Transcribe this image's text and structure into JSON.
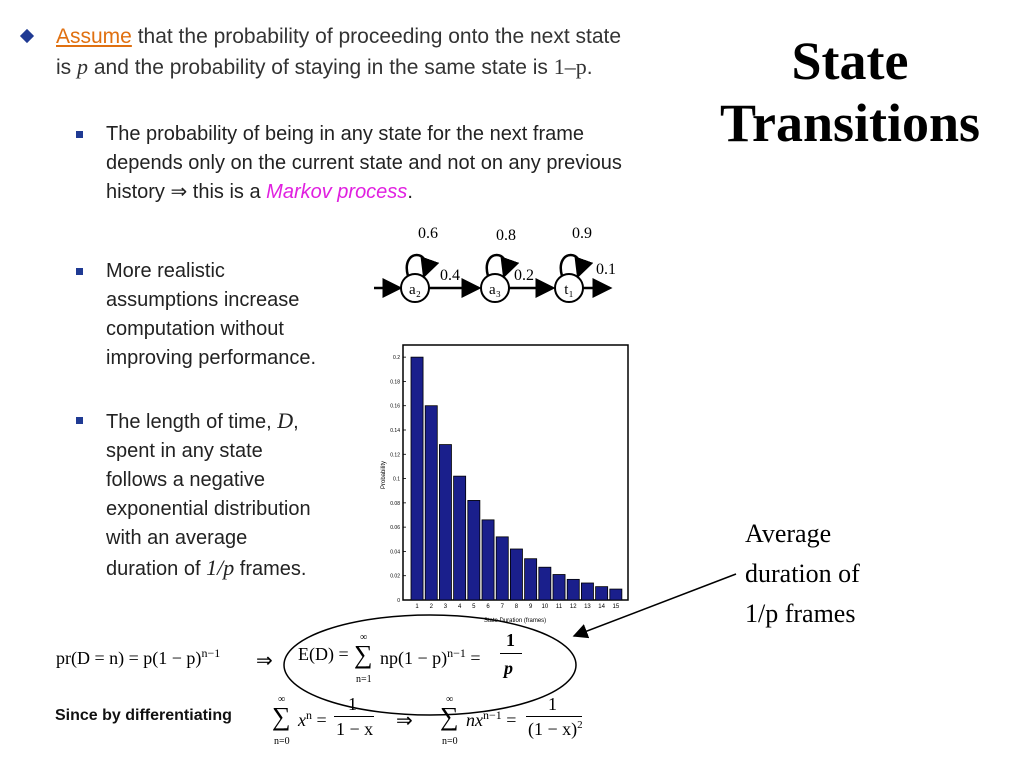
{
  "title": [
    "State",
    "Transitions"
  ],
  "bullet1": {
    "word_assume": "Assume",
    "text_a": " that the probability of proceeding onto the next state is ",
    "var_p": "p",
    "text_b": " and the probability of staying in the same state is ",
    "one_minus_p": "1–p",
    "text_c": "."
  },
  "sub1": {
    "text_a": "The probability of being in any state for the next frame depends only on the current state and not on any previous history ",
    "implies": "⇒",
    "text_b": " this is a ",
    "markov": "Markov process",
    "text_c": "."
  },
  "sub2": {
    "lines": [
      "More realistic",
      "assumptions increase",
      "computation without",
      "improving performance."
    ]
  },
  "sub3": {
    "text_a": "The length of time, ",
    "var_d": "D",
    "text_b": ",",
    "lines": [
      "spent in any state",
      "follows a negative",
      "exponential distribution",
      "with an average"
    ],
    "last_a": "duration of ",
    "last_var": "1/p",
    "last_b": " frames."
  },
  "diagram": {
    "nodes": [
      "a₂",
      "a₃",
      "t₁"
    ],
    "self_loops": [
      "0.6",
      "0.8",
      "0.9"
    ],
    "transitions": [
      "0.4",
      "0.2",
      "0.1"
    ]
  },
  "chart_data": {
    "type": "bar",
    "categories": [
      "1",
      "2",
      "3",
      "4",
      "5",
      "6",
      "7",
      "8",
      "9",
      "10",
      "11",
      "12",
      "13",
      "14",
      "15"
    ],
    "values": [
      0.2,
      0.16,
      0.128,
      0.102,
      0.082,
      0.066,
      0.052,
      0.042,
      0.034,
      0.027,
      0.021,
      0.017,
      0.014,
      0.011,
      0.009
    ],
    "ylim": [
      0,
      0.21
    ],
    "yticks": [
      "0",
      "0.02",
      "0.04",
      "0.06",
      "0.08",
      "0.1",
      "0.12",
      "0.14",
      "0.16",
      "0.18",
      "0.2"
    ],
    "xlabel": "State Duration (frames)",
    "ylabel": "Probability",
    "bar_color": "#1a1f8c"
  },
  "formulas": {
    "pr_left": "pr(D = n) = p(1 − p)",
    "pr_exp": "n−1",
    "implies": "⇒",
    "e_left": "E(D) = ",
    "sum_top": "∞",
    "sum_bottom": "n=1",
    "sum_sign": "∑",
    "e_body": "np(1 − p)",
    "e_exp": "n−1",
    "eq": " = ",
    "frac_num": "1",
    "frac_den": "p"
  },
  "since": {
    "label": "Since by differentiating",
    "s1_top": "∞",
    "s1_bottom": "n=0",
    "sum_sign": "∑",
    "s1_body": "x",
    "s1_exp": "n",
    "eq": " = ",
    "s1_num": "1",
    "s1_den": "1 − x",
    "implies": "⇒",
    "s2_body": "nx",
    "s2_exp": "n−1",
    "s2_num": "1",
    "s2_den": "(1 − x)",
    "s2_den_exp": "2"
  },
  "annotation": [
    "Average",
    "duration of",
    "1/p frames"
  ]
}
